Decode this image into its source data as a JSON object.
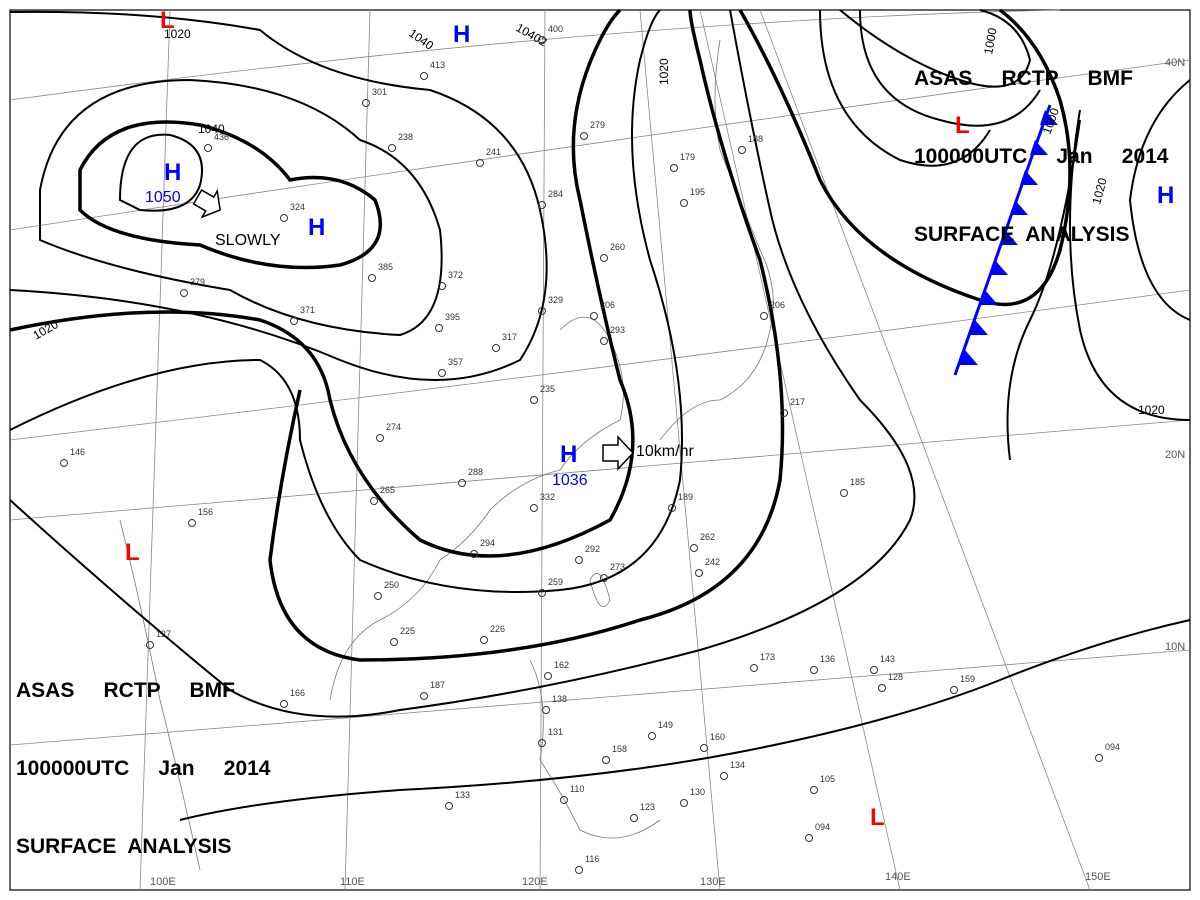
{
  "title": {
    "line1": "ASAS     RCTP     BMF",
    "line2": "100000UTC     Jan     2014",
    "line3": "SURFACE  ANALYSIS"
  },
  "colors": {
    "high": "#0000ff",
    "low": "#ff0000",
    "isobar": "#000000",
    "cold_front": "#0000ff"
  },
  "pressure_centers": [
    {
      "type": "H",
      "value": "1050"
    },
    {
      "type": "H",
      "value": ""
    },
    {
      "type": "H",
      "value": ""
    },
    {
      "type": "H",
      "value": "1036"
    },
    {
      "type": "H",
      "value": ""
    },
    {
      "type": "L",
      "value": ""
    },
    {
      "type": "L",
      "value": ""
    },
    {
      "type": "L",
      "value": ""
    },
    {
      "type": "L",
      "value": ""
    }
  ],
  "isobar_labels": [
    "1020",
    "1040",
    "10402",
    "1040",
    "1020",
    "1020",
    "1000",
    "1000",
    "1020",
    "1020"
  ],
  "movement": {
    "slowly": "SLOWLY",
    "speed": "10km/hr"
  },
  "longitudes": [
    "100E",
    "110E",
    "120E",
    "130E",
    "140E",
    "150E"
  ],
  "latitudes": [
    "40N",
    "20N",
    "10N"
  ],
  "station_samples": [
    "400",
    "413",
    "301",
    "238",
    "241",
    "279",
    "436",
    "324",
    "385",
    "372",
    "395",
    "317",
    "329",
    "306",
    "293",
    "357",
    "274",
    "235",
    "288",
    "265",
    "294",
    "332",
    "250",
    "225",
    "226",
    "259",
    "273",
    "292",
    "262",
    "242",
    "189",
    "185",
    "217",
    "206",
    "195",
    "179",
    "188",
    "260",
    "284",
    "371",
    "379",
    "156",
    "146",
    "127",
    "166",
    "187",
    "162",
    "138",
    "131",
    "110",
    "116",
    "133",
    "158",
    "149",
    "160",
    "134",
    "130",
    "123",
    "105",
    "094",
    "128",
    "159",
    "143",
    "136",
    "173",
    "094"
  ]
}
